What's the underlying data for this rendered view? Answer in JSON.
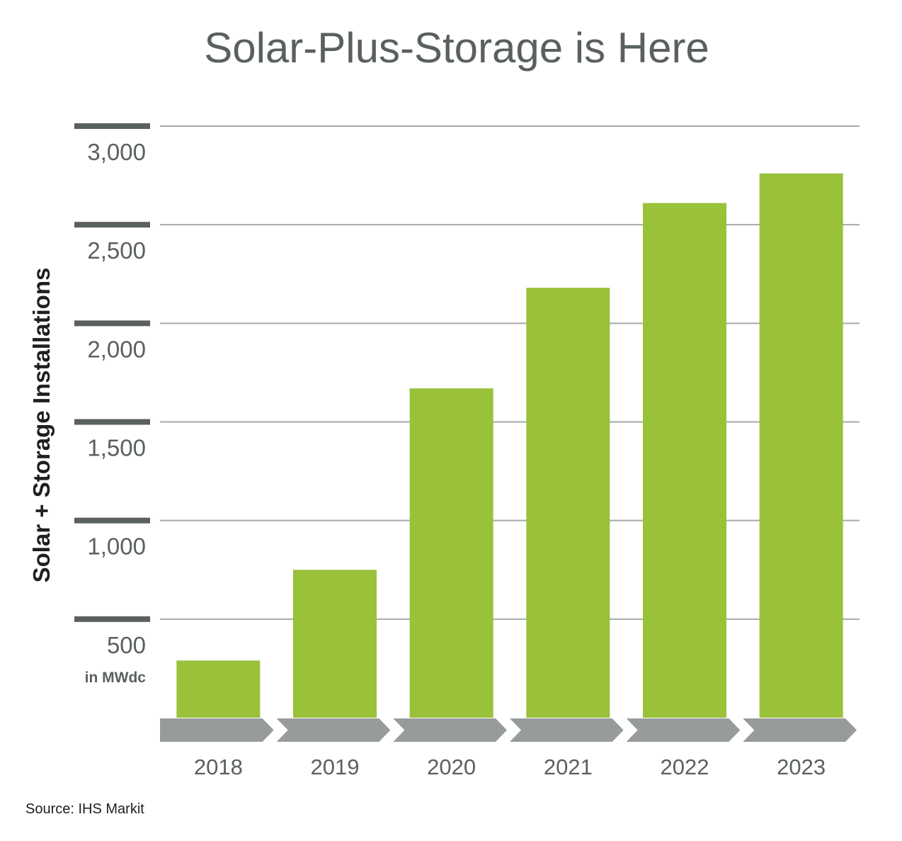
{
  "colors": {
    "bar": "#99c13a",
    "arrow": "#979b9b",
    "grid": "#a6a9a9",
    "tick_mark": "#5a605f",
    "text": "#5a605f",
    "axis_label": "#1f1f1f"
  },
  "chart_data": {
    "type": "bar",
    "title": "Solar-Plus-Storage is Here",
    "ylabel": "Solar + Storage Installations",
    "unit_label": "in MWdc",
    "source": "Source: IHS Markit",
    "categories": [
      "2018",
      "2019",
      "2020",
      "2021",
      "2022",
      "2023"
    ],
    "values": [
      290,
      750,
      1670,
      2180,
      2610,
      2760
    ],
    "yticks": [
      "500",
      "1,000",
      "1,500",
      "2,000",
      "2,500",
      "3,000"
    ],
    "ytick_values": [
      500,
      1000,
      1500,
      2000,
      2500,
      3000
    ],
    "ylim": [
      0,
      3000
    ],
    "grid": true,
    "legend": "none"
  }
}
